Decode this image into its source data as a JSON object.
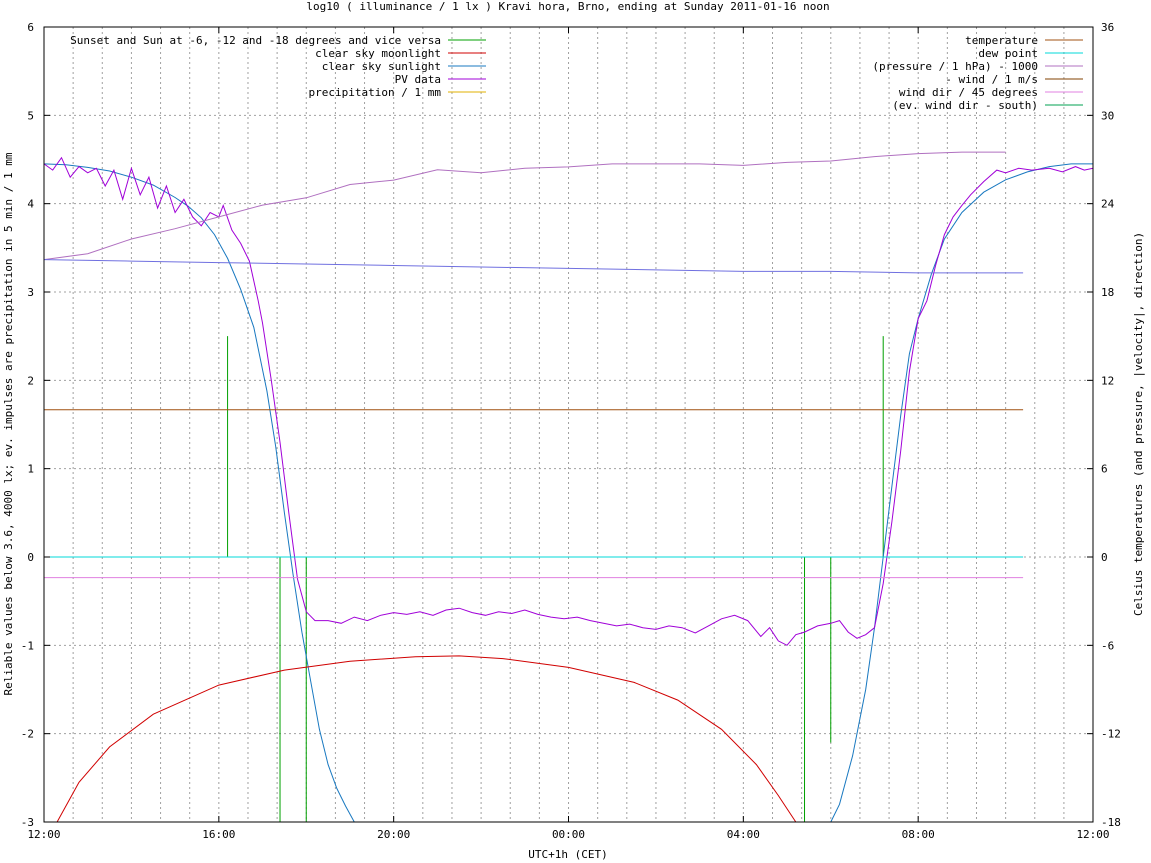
{
  "chart_data": {
    "type": "line",
    "title": "log10 ( illuminance / 1 lx ) Kravi hora, Brno, ending at Sunday 2011-01-16 noon",
    "xlabel": "UTC+1h (CET)",
    "ylabel": "Reliable values below 3.6, 4000 lx; ev. impulses are precipitation in 5 min / 1 mm",
    "y2label": "Celsius temperatures (and pressure, |velocity|, direction)",
    "xlim": [
      0,
      24
    ],
    "ylim": [
      -3,
      6
    ],
    "y2lim": [
      -18,
      36
    ],
    "grid": true,
    "x_ticks": [
      {
        "v": 0,
        "label": "12:00"
      },
      {
        "v": 4,
        "label": "16:00"
      },
      {
        "v": 8,
        "label": "20:00"
      },
      {
        "v": 12,
        "label": "00:00"
      },
      {
        "v": 16,
        "label": "04:00"
      },
      {
        "v": 20,
        "label": "08:00"
      },
      {
        "v": 24,
        "label": "12:00"
      }
    ],
    "x_minor_step": 0.6667,
    "y_ticks": [
      "-3",
      "-2",
      "-1",
      "0",
      "1",
      "2",
      "3",
      "4",
      "5",
      "6"
    ],
    "y2_ticks": [
      "-18",
      "-12",
      "-6",
      "0",
      "6",
      "12",
      "18",
      "24",
      "30",
      "36"
    ],
    "legend_left": [
      {
        "name": "Sunset and Sun at -6, -12 and -18 degrees and vice versa",
        "color": "#00a000"
      },
      {
        "name": "clear sky moonlight",
        "color": "#d00000"
      },
      {
        "name": "clear sky sunlight",
        "color": "#1878c0"
      },
      {
        "name": "PV data",
        "color": "#a000d8"
      },
      {
        "name": "precipitation / 1 mm",
        "color": "#e0b000"
      }
    ],
    "legend_right": [
      {
        "name": "temperature",
        "color": "#a05010"
      },
      {
        "name": "dew point",
        "color": "#00d8d8"
      },
      {
        "name": "(pressure / 1 hPa) - 1000",
        "color": "#b070c0"
      },
      {
        "name": "- wind / 1 m/s",
        "color": "#804000"
      },
      {
        "name": "wind dir / 45 degrees",
        "color": "#e080e0"
      },
      {
        "name": "(ev. wind dir - south)",
        "color": "#00a050"
      }
    ],
    "series": [
      {
        "key": "sunlight",
        "axis": "y",
        "color": "#1878c0",
        "points": [
          [
            0.0,
            4.45
          ],
          [
            0.5,
            4.44
          ],
          [
            1.0,
            4.41
          ],
          [
            1.5,
            4.37
          ],
          [
            2.0,
            4.3
          ],
          [
            2.5,
            4.21
          ],
          [
            3.0,
            4.07
          ],
          [
            3.3,
            3.97
          ],
          [
            3.6,
            3.84
          ],
          [
            3.9,
            3.65
          ],
          [
            4.2,
            3.38
          ],
          [
            4.5,
            3.03
          ],
          [
            4.8,
            2.6
          ],
          [
            5.1,
            1.88
          ],
          [
            5.3,
            1.25
          ],
          [
            5.5,
            0.5
          ],
          [
            5.7,
            -0.2
          ],
          [
            5.9,
            -0.85
          ],
          [
            6.1,
            -1.4
          ],
          [
            6.3,
            -1.95
          ],
          [
            6.5,
            -2.35
          ],
          [
            6.7,
            -2.62
          ],
          [
            6.9,
            -2.82
          ],
          [
            7.1,
            -3.0
          ],
          [
            18.0,
            -3.0
          ],
          [
            18.2,
            -2.8
          ],
          [
            18.5,
            -2.25
          ],
          [
            18.8,
            -1.5
          ],
          [
            19.0,
            -0.8
          ],
          [
            19.2,
            0.0
          ],
          [
            19.4,
            0.8
          ],
          [
            19.6,
            1.6
          ],
          [
            19.8,
            2.3
          ],
          [
            20.0,
            2.7
          ],
          [
            20.3,
            3.2
          ],
          [
            20.6,
            3.6
          ],
          [
            21.0,
            3.9
          ],
          [
            21.5,
            4.13
          ],
          [
            22.0,
            4.27
          ],
          [
            22.5,
            4.36
          ],
          [
            23.0,
            4.42
          ],
          [
            23.5,
            4.45
          ],
          [
            24.0,
            4.45
          ]
        ]
      },
      {
        "key": "pv",
        "axis": "y",
        "color": "#a000d8",
        "points": [
          [
            0.0,
            4.45
          ],
          [
            0.2,
            4.38
          ],
          [
            0.4,
            4.52
          ],
          [
            0.6,
            4.3
          ],
          [
            0.8,
            4.42
          ],
          [
            1.0,
            4.35
          ],
          [
            1.2,
            4.4
          ],
          [
            1.4,
            4.2
          ],
          [
            1.6,
            4.38
          ],
          [
            1.8,
            4.05
          ],
          [
            2.0,
            4.4
          ],
          [
            2.2,
            4.1
          ],
          [
            2.4,
            4.3
          ],
          [
            2.6,
            3.95
          ],
          [
            2.8,
            4.2
          ],
          [
            3.0,
            3.9
          ],
          [
            3.2,
            4.05
          ],
          [
            3.4,
            3.85
          ],
          [
            3.6,
            3.75
          ],
          [
            3.8,
            3.9
          ],
          [
            4.0,
            3.85
          ],
          [
            4.1,
            3.98
          ],
          [
            4.3,
            3.7
          ],
          [
            4.5,
            3.55
          ],
          [
            4.7,
            3.35
          ],
          [
            4.9,
            2.9
          ],
          [
            5.0,
            2.65
          ],
          [
            5.2,
            2.0
          ],
          [
            5.4,
            1.3
          ],
          [
            5.6,
            0.5
          ],
          [
            5.8,
            -0.25
          ],
          [
            6.0,
            -0.62
          ],
          [
            6.2,
            -0.72
          ],
          [
            6.5,
            -0.72
          ],
          [
            6.8,
            -0.75
          ],
          [
            7.1,
            -0.68
          ],
          [
            7.4,
            -0.72
          ],
          [
            7.7,
            -0.66
          ],
          [
            8.0,
            -0.63
          ],
          [
            8.3,
            -0.65
          ],
          [
            8.6,
            -0.62
          ],
          [
            8.9,
            -0.66
          ],
          [
            9.2,
            -0.6
          ],
          [
            9.5,
            -0.58
          ],
          [
            9.8,
            -0.63
          ],
          [
            10.1,
            -0.66
          ],
          [
            10.4,
            -0.62
          ],
          [
            10.7,
            -0.64
          ],
          [
            11.0,
            -0.6
          ],
          [
            11.3,
            -0.65
          ],
          [
            11.6,
            -0.68
          ],
          [
            11.9,
            -0.7
          ],
          [
            12.2,
            -0.68
          ],
          [
            12.5,
            -0.72
          ],
          [
            12.8,
            -0.75
          ],
          [
            13.1,
            -0.78
          ],
          [
            13.4,
            -0.76
          ],
          [
            13.7,
            -0.8
          ],
          [
            14.0,
            -0.82
          ],
          [
            14.3,
            -0.78
          ],
          [
            14.6,
            -0.8
          ],
          [
            14.9,
            -0.86
          ],
          [
            15.2,
            -0.78
          ],
          [
            15.5,
            -0.7
          ],
          [
            15.8,
            -0.66
          ],
          [
            16.1,
            -0.72
          ],
          [
            16.4,
            -0.9
          ],
          [
            16.6,
            -0.8
          ],
          [
            16.8,
            -0.95
          ],
          [
            17.0,
            -1.0
          ],
          [
            17.2,
            -0.88
          ],
          [
            17.4,
            -0.85
          ],
          [
            17.7,
            -0.78
          ],
          [
            18.0,
            -0.75
          ],
          [
            18.2,
            -0.72
          ],
          [
            18.4,
            -0.85
          ],
          [
            18.6,
            -0.92
          ],
          [
            18.8,
            -0.88
          ],
          [
            19.0,
            -0.8
          ],
          [
            19.2,
            -0.3
          ],
          [
            19.4,
            0.4
          ],
          [
            19.6,
            1.2
          ],
          [
            19.8,
            2.1
          ],
          [
            20.0,
            2.7
          ],
          [
            20.2,
            2.9
          ],
          [
            20.4,
            3.3
          ],
          [
            20.6,
            3.65
          ],
          [
            20.8,
            3.85
          ],
          [
            21.0,
            3.98
          ],
          [
            21.2,
            4.1
          ],
          [
            21.5,
            4.25
          ],
          [
            21.8,
            4.38
          ],
          [
            22.0,
            4.35
          ],
          [
            22.3,
            4.4
          ],
          [
            22.6,
            4.38
          ],
          [
            23.0,
            4.4
          ],
          [
            23.3,
            4.36
          ],
          [
            23.6,
            4.42
          ],
          [
            23.8,
            4.38
          ],
          [
            24.0,
            4.4
          ]
        ]
      },
      {
        "key": "moonlight",
        "axis": "y",
        "color": "#d00000",
        "points": [
          [
            0.3,
            -3.0
          ],
          [
            0.8,
            -2.55
          ],
          [
            1.5,
            -2.15
          ],
          [
            2.5,
            -1.78
          ],
          [
            4.0,
            -1.45
          ],
          [
            5.5,
            -1.28
          ],
          [
            7.0,
            -1.18
          ],
          [
            8.5,
            -1.13
          ],
          [
            9.5,
            -1.12
          ],
          [
            10.5,
            -1.15
          ],
          [
            12.0,
            -1.25
          ],
          [
            13.5,
            -1.42
          ],
          [
            14.5,
            -1.62
          ],
          [
            15.5,
            -1.95
          ],
          [
            16.3,
            -2.35
          ],
          [
            16.8,
            -2.7
          ],
          [
            17.2,
            -3.0
          ]
        ]
      },
      {
        "key": "pressure",
        "axis": "y2",
        "color": "#b070c0",
        "points": [
          [
            0.0,
            20.2
          ],
          [
            1.0,
            20.6
          ],
          [
            2.0,
            21.6
          ],
          [
            3.0,
            22.3
          ],
          [
            4.0,
            23.1
          ],
          [
            5.0,
            23.9
          ],
          [
            6.0,
            24.4
          ],
          [
            7.0,
            25.3
          ],
          [
            8.0,
            25.6
          ],
          [
            9.0,
            26.3
          ],
          [
            10.0,
            26.1
          ],
          [
            11.0,
            26.4
          ],
          [
            12.0,
            26.5
          ],
          [
            13.0,
            26.7
          ],
          [
            14.0,
            26.7
          ],
          [
            15.0,
            26.7
          ],
          [
            16.0,
            26.6
          ],
          [
            17.0,
            26.8
          ],
          [
            18.0,
            26.9
          ],
          [
            19.0,
            27.2
          ],
          [
            20.0,
            27.4
          ],
          [
            21.0,
            27.5
          ],
          [
            22.0,
            27.5
          ]
        ]
      },
      {
        "key": "temperature",
        "axis": "y2",
        "color": "#7070e0",
        "points": [
          [
            0.0,
            20.2
          ],
          [
            2.0,
            20.1
          ],
          [
            4.0,
            20.0
          ],
          [
            6.0,
            19.9
          ],
          [
            8.0,
            19.8
          ],
          [
            10.0,
            19.7
          ],
          [
            12.0,
            19.6
          ],
          [
            14.0,
            19.5
          ],
          [
            16.0,
            19.4
          ],
          [
            18.0,
            19.4
          ],
          [
            20.0,
            19.3
          ],
          [
            22.0,
            19.3
          ],
          [
            22.4,
            19.3
          ]
        ]
      },
      {
        "key": "wind",
        "axis": "y2",
        "color": "#a05010",
        "points": [
          [
            0.0,
            10.0
          ],
          [
            22.4,
            10.0
          ]
        ]
      },
      {
        "key": "dewpoint",
        "axis": "y2",
        "color": "#00d8d8",
        "points": [
          [
            0.0,
            0.0
          ],
          [
            22.4,
            0.0
          ]
        ]
      },
      {
        "key": "winddir",
        "axis": "y2",
        "color": "#e080e0",
        "points": [
          [
            0.0,
            -1.4
          ],
          [
            22.4,
            -1.4
          ]
        ]
      }
    ],
    "sun_markers": {
      "color": "#00a000",
      "lines": [
        [
          4.2,
          2.5
        ],
        [
          4.8,
          0.0
        ],
        [
          5.4,
          -3.0
        ],
        [
          6.0,
          -3.0
        ],
        [
          17.4,
          -3.0
        ],
        [
          18.0,
          -2.1
        ],
        [
          18.6,
          0.0
        ],
        [
          19.2,
          2.5
        ]
      ]
    }
  }
}
